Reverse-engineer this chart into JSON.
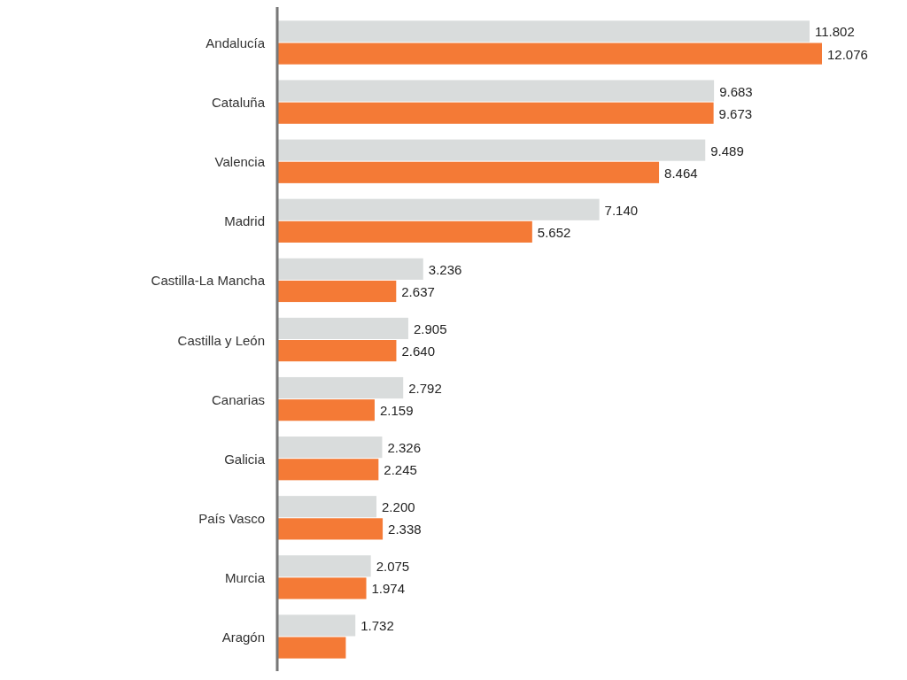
{
  "chart_data": {
    "type": "bar",
    "orientation": "horizontal",
    "categories": [
      "Andalucía",
      "Cataluña",
      "Valencia",
      "Madrid",
      "Castilla-La Mancha",
      "Castilla y León",
      "Canarias",
      "Galicia",
      "País Vasco",
      "Murcia",
      "Aragón"
    ],
    "series": [
      {
        "color": "#d9dcdc",
        "values": [
          11802,
          9683,
          9489,
          7140,
          3236,
          2905,
          2792,
          2326,
          2200,
          2075,
          1732
        ],
        "value_labels": [
          "11.802",
          "9.683",
          "9.489",
          "7.140",
          "3.236",
          "2.905",
          "2.792",
          "2.326",
          "2.200",
          "2.075",
          "1.732"
        ]
      },
      {
        "color": "#f47a36",
        "values": [
          12076,
          9673,
          8464,
          5652,
          2637,
          2640,
          2159,
          2245,
          2338,
          1974,
          1520
        ],
        "value_labels": [
          "12.076",
          "9.673",
          "8.464",
          "5.652",
          "2.637",
          "2.640",
          "2.159",
          "2.245",
          "2.338",
          "1.974",
          null
        ]
      }
    ]
  }
}
